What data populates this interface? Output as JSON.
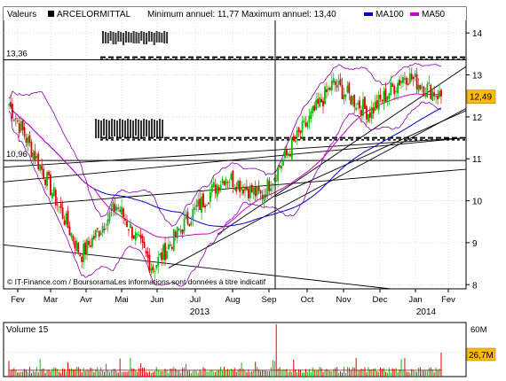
{
  "header": {
    "valeurs_label": "Valeurs",
    "ticker": "ARCELORMITTAL",
    "min_max_text": "Minimum annuel: 11,77  Maximum annuel: 13,40",
    "legend": [
      {
        "name": "MA100",
        "color": "#0000cc"
      },
      {
        "name": "MA50",
        "color": "#cc00cc"
      }
    ]
  },
  "price_panel": {
    "ylim": [
      7.9,
      14.3
    ],
    "yticks": [
      "8",
      "9",
      "10",
      "11",
      "12",
      "13",
      "14"
    ],
    "left_labels": [
      {
        "text": "13,36",
        "value": 13.36
      },
      {
        "text": "10,96",
        "value": 10.96
      }
    ],
    "last_price_label": "12,49",
    "last_price_value": 12.49,
    "watermark": "© IT-Finance.com / BoursoramaLes informations sont données à titre indicatif"
  },
  "x_axis": {
    "months": [
      "Fev",
      "Mar",
      "Avr",
      "Mai",
      "Jun",
      "Jul",
      "Aug",
      "Sep",
      "Oct",
      "Nov",
      "Dec",
      "Jan",
      "Fev"
    ],
    "years": [
      "2013",
      "2014"
    ]
  },
  "volume_panel": {
    "title": "Volume 15",
    "ticks": [
      "60M",
      "26,7M"
    ],
    "ylim": [
      0,
      60
    ],
    "last_volume_label": "26,7M"
  },
  "colors": {
    "up": "#00bb00",
    "down": "#dd0000",
    "ma100": "#0000cc",
    "ma50": "#cc00cc",
    "bollinger": "#8800aa",
    "trend": "#000000",
    "last_price_box": "#ffbb00"
  },
  "chart_data": {
    "type": "line",
    "title": "ARCELORMITTAL",
    "series": [
      {
        "name": "ARCELORMITTAL",
        "x_months": [
          "Fev",
          "Mar",
          "Avr",
          "Mai",
          "Jun",
          "Jul",
          "Aug",
          "Sep",
          "Oct",
          "Nov",
          "Dec",
          "Jan",
          "Fev"
        ],
        "values": [
          12.3,
          10.6,
          8.7,
          9.9,
          8.4,
          9.6,
          10.6,
          10.1,
          11.5,
          12.8,
          12.1,
          13.0,
          12.49
        ]
      },
      {
        "name": "MA100",
        "values": [
          12.6,
          12.4,
          11.6,
          10.6,
          9.8,
          9.4,
          9.5,
          9.9,
          10.6,
          11.3,
          11.9,
          12.2,
          12.2
        ]
      },
      {
        "name": "MA50",
        "values": [
          12.5,
          11.5,
          9.9,
          9.4,
          9.2,
          9.3,
          9.7,
          10.3,
          11.2,
          12.1,
          12.4,
          12.6,
          12.5
        ]
      }
    ],
    "volume": {
      "title": "Volume 15",
      "ylim": [
        0,
        60
      ],
      "last_value": 26.7,
      "unit": "M"
    }
  }
}
